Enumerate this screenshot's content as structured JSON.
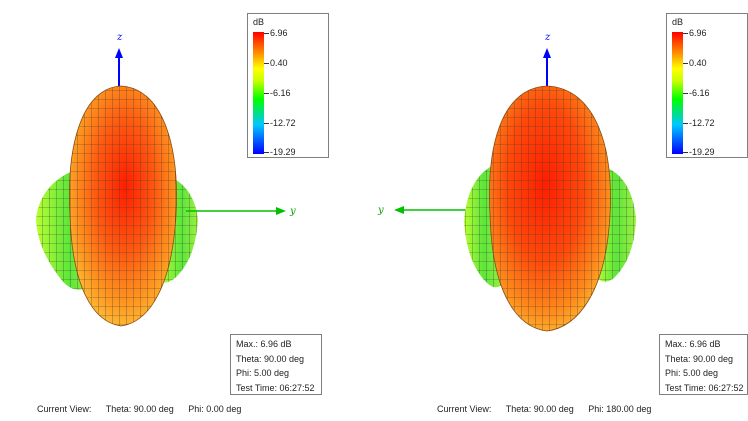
{
  "legend": {
    "unit": "dB",
    "ticks": [
      "6.96",
      "0.40",
      "-6.16",
      "-12.72",
      "-19.29"
    ]
  },
  "panels": [
    {
      "id": "left",
      "axes": {
        "z": "z",
        "y": "y"
      },
      "info": {
        "max": "Max.: 6.96 dB",
        "theta": "Theta: 90.00 deg",
        "phi": "Phi: 5.00 deg",
        "test_time": "Test Time: 06:27:52"
      },
      "current_view": {
        "label": "Current View:",
        "theta": "Theta: 90.00 deg",
        "phi": "Phi: 0.00 deg"
      }
    },
    {
      "id": "right",
      "axes": {
        "z": "z",
        "y": "y"
      },
      "info": {
        "max": "Max.: 6.96 dB",
        "theta": "Theta: 90.00 deg",
        "phi": "Phi: 5.00 deg",
        "test_time": "Test Time: 06:27:52"
      },
      "current_view": {
        "label": "Current View:",
        "theta": "Theta: 90.00 deg",
        "phi": "Phi: 180.00 deg"
      }
    }
  ],
  "colors": {
    "z_axis": "#0000ff",
    "y_axis": "#00c000",
    "mesh": "#404040"
  }
}
